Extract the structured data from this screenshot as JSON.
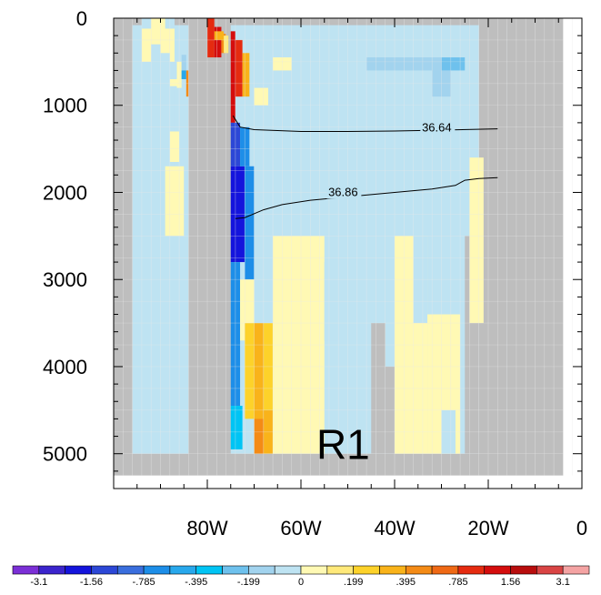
{
  "chart_data": {
    "type": "heatmap",
    "title": "",
    "xlabel": "",
    "ylabel": "",
    "x_axis": {
      "range": [
        100,
        0
      ],
      "tick_values": [
        80,
        60,
        40,
        20,
        0
      ],
      "tick_labels": [
        "80W",
        "60W",
        "40W",
        "20W",
        "0"
      ]
    },
    "y_axis": {
      "range": [
        0,
        5400
      ],
      "inverted": true,
      "tick_values": [
        0,
        1000,
        2000,
        3000,
        4000,
        5000
      ],
      "tick_labels": [
        "0",
        "1000",
        "2000",
        "3000",
        "4000",
        "5000"
      ]
    },
    "grid": false,
    "annotation": "R1",
    "colors": {
      "land": "#bebebe",
      "plot_background": "#ffffff",
      "cell_lines": "#e9e9e9",
      "contour": "#000000"
    },
    "colorbar": {
      "orientation": "horizontal",
      "placement": "bottom",
      "colors": [
        "#7b2fd6",
        "#3b24cc",
        "#1414dc",
        "#2c47d6",
        "#3a6edd",
        "#1d8ee8",
        "#28a8ec",
        "#00c4f4",
        "#6ec1ed",
        "#a2d3ee",
        "#bee3f2",
        "#fff9b4",
        "#ffe97a",
        "#fdd22a",
        "#f9b31a",
        "#f48b16",
        "#ef6915",
        "#e52b10",
        "#d40d0d",
        "#b80d0d",
        "#d94444",
        "#f4a3a3"
      ],
      "labels": [
        "-3.1",
        "",
        "-1.56",
        "",
        "-.785",
        "",
        "-.395",
        "",
        "-.199",
        "",
        "0",
        "",
        ".199",
        "",
        ".395",
        "",
        ".785",
        "",
        "1.56",
        "",
        "3.1"
      ]
    },
    "contours": [
      {
        "label": "36.64",
        "label_at": [
          31,
          1290
        ],
        "points": [
          [
            74.5,
            1120
          ],
          [
            73,
            1250
          ],
          [
            70,
            1280
          ],
          [
            60,
            1300
          ],
          [
            50,
            1300
          ],
          [
            40,
            1295
          ],
          [
            30,
            1285
          ],
          [
            18,
            1270
          ]
        ]
      },
      {
        "label": "36.86",
        "label_at": [
          51,
          2030
        ],
        "points": [
          [
            74,
            2300
          ],
          [
            72,
            2290
          ],
          [
            68,
            2200
          ],
          [
            64,
            2140
          ],
          [
            58,
            2090
          ],
          [
            50,
            2050
          ],
          [
            40,
            2000
          ],
          [
            32,
            1960
          ],
          [
            27,
            1920
          ],
          [
            25,
            1860
          ],
          [
            22,
            1840
          ],
          [
            18,
            1830
          ]
        ]
      }
    ],
    "cells": [
      {
        "x": [
          94,
          87
        ],
        "y": [
          0,
          500
        ],
        "color": "#bee3f2"
      },
      {
        "x": [
          94,
          87
        ],
        "y": [
          120,
          500
        ],
        "color": "#fff9b4"
      },
      {
        "x": [
          92,
          89
        ],
        "y": [
          0,
          280
        ],
        "color": "#fff9b4"
      },
      {
        "x": [
          92,
          90
        ],
        "y": [
          300,
          600
        ],
        "color": "#bee3f2"
      },
      {
        "x": [
          90,
          88
        ],
        "y": [
          400,
          1280
        ],
        "color": "#bee3f2"
      },
      {
        "x": [
          89,
          85
        ],
        "y": [
          600,
          1700
        ],
        "color": "#bee3f2"
      },
      {
        "x": [
          88,
          86
        ],
        "y": [
          700,
          780
        ],
        "color": "#fff9b4"
      },
      {
        "x": [
          87,
          84.5
        ],
        "y": [
          800,
          1700
        ],
        "color": "#bee3f2"
      },
      {
        "x": [
          89,
          85
        ],
        "y": [
          1700,
          2500
        ],
        "color": "#fff9b4"
      },
      {
        "x": [
          88,
          86
        ],
        "y": [
          1300,
          1650
        ],
        "color": "#fff9b4"
      },
      {
        "x": [
          86.5,
          85.5
        ],
        "y": [
          500,
          800
        ],
        "color": "#fff9b4"
      },
      {
        "x": [
          85.5,
          84.5
        ],
        "y": [
          420,
          700
        ],
        "color": "#a2d3ee"
      },
      {
        "x": [
          85.5,
          84.5
        ],
        "y": [
          600,
          700
        ],
        "color": "#28a8ec"
      },
      {
        "x": [
          84.5,
          83.5
        ],
        "y": [
          600,
          900
        ],
        "color": "#f48b16"
      },
      {
        "x": [
          83.5,
          82.5
        ],
        "y": [
          1000,
          1500
        ],
        "color": "#fff9b4"
      },
      {
        "x": [
          84,
          75
        ],
        "y": [
          0,
          5200
        ],
        "color": "#bebebe"
      },
      {
        "x": [
          80,
          78.5
        ],
        "y": [
          0,
          450
        ],
        "color": "#e52b10"
      },
      {
        "x": [
          78.5,
          77
        ],
        "y": [
          100,
          450
        ],
        "color": "#d40d0d"
      },
      {
        "x": [
          77,
          76
        ],
        "y": [
          180,
          400
        ],
        "color": "#f48b16"
      },
      {
        "x": [
          78.5,
          76.5
        ],
        "y": [
          150,
          250
        ],
        "color": "#f9b31a"
      },
      {
        "x": [
          76.5,
          75.5
        ],
        "y": [
          200,
          400
        ],
        "color": "#ffe97a"
      },
      {
        "x": [
          75,
          74
        ],
        "y": [
          150,
          1200
        ],
        "color": "#d40d0d"
      },
      {
        "x": [
          74,
          72.5
        ],
        "y": [
          250,
          900
        ],
        "color": "#e52b10"
      },
      {
        "x": [
          72.5,
          71
        ],
        "y": [
          400,
          900
        ],
        "color": "#f9b31a"
      },
      {
        "x": [
          75,
          73
        ],
        "y": [
          1200,
          1700
        ],
        "color": "#2c47d6"
      },
      {
        "x": [
          75,
          72
        ],
        "y": [
          1700,
          2800
        ],
        "color": "#1414dc"
      },
      {
        "x": [
          73,
          71
        ],
        "y": [
          1250,
          1700
        ],
        "color": "#1d8ee8"
      },
      {
        "x": [
          72,
          70
        ],
        "y": [
          1700,
          3000
        ],
        "color": "#1d8ee8"
      },
      {
        "x": [
          75,
          73
        ],
        "y": [
          2800,
          4450
        ],
        "color": "#1d8ee8"
      },
      {
        "x": [
          75,
          72.5
        ],
        "y": [
          4450,
          4950
        ],
        "color": "#00c4f4"
      },
      {
        "x": [
          73,
          70
        ],
        "y": [
          3000,
          3700
        ],
        "color": "#fff9b4"
      },
      {
        "x": [
          72,
          70
        ],
        "y": [
          3500,
          4600
        ],
        "color": "#fdd22a"
      },
      {
        "x": [
          70,
          68
        ],
        "y": [
          3500,
          5000
        ],
        "color": "#f9b31a"
      },
      {
        "x": [
          68,
          66
        ],
        "y": [
          3500,
          4500
        ],
        "color": "#fdd22a"
      },
      {
        "x": [
          70,
          68
        ],
        "y": [
          4600,
          5000
        ],
        "color": "#f48b16"
      },
      {
        "x": [
          68,
          66
        ],
        "y": [
          4500,
          5000
        ],
        "color": "#f9b31a"
      },
      {
        "x": [
          66,
          55
        ],
        "y": [
          2500,
          5000
        ],
        "color": "#fff9b4"
      },
      {
        "x": [
          55,
          52
        ],
        "y": [
          2800,
          3700
        ],
        "color": "#bee3f2"
      },
      {
        "x": [
          52,
          48
        ],
        "y": [
          3200,
          5000
        ],
        "color": "#bee3f2"
      },
      {
        "x": [
          45,
          42
        ],
        "y": [
          3500,
          5000
        ],
        "color": "#bebebe"
      },
      {
        "x": [
          42,
          36
        ],
        "y": [
          4000,
          5000
        ],
        "color": "#bebebe"
      },
      {
        "x": [
          40,
          33
        ],
        "y": [
          2500,
          5000
        ],
        "color": "#fff9b4"
      },
      {
        "x": [
          36,
          33
        ],
        "y": [
          2500,
          3500
        ],
        "color": "#bee3f2"
      },
      {
        "x": [
          33,
          26
        ],
        "y": [
          3400,
          5000
        ],
        "color": "#fff9b4"
      },
      {
        "x": [
          30,
          27
        ],
        "y": [
          4500,
          5000
        ],
        "color": "#bee3f2"
      },
      {
        "x": [
          25,
          22
        ],
        "y": [
          2500,
          5000
        ],
        "color": "#bebebe"
      },
      {
        "x": [
          22,
          16
        ],
        "y": [
          0,
          5200
        ],
        "color": "#bebebe"
      },
      {
        "x": [
          24,
          21
        ],
        "y": [
          1600,
          3500
        ],
        "color": "#fff9b4"
      },
      {
        "x": [
          46,
          38
        ],
        "y": [
          450,
          600
        ],
        "color": "#a2d3ee"
      },
      {
        "x": [
          38,
          30
        ],
        "y": [
          450,
          600
        ],
        "color": "#a2d3ee"
      },
      {
        "x": [
          30,
          25
        ],
        "y": [
          450,
          600
        ],
        "color": "#6ec1ed"
      },
      {
        "x": [
          32,
          28
        ],
        "y": [
          600,
          900
        ],
        "color": "#a2d3ee"
      },
      {
        "x": [
          66,
          62
        ],
        "y": [
          450,
          600
        ],
        "color": "#fff9b4"
      },
      {
        "x": [
          70,
          67
        ],
        "y": [
          800,
          1000
        ],
        "color": "#fff9b4"
      }
    ]
  }
}
